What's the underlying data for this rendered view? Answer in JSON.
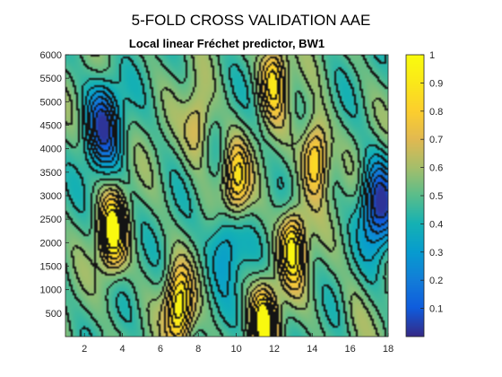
{
  "chart_data": {
    "type": "heatmap",
    "suptitle": "5-FOLD CROSS VALIDATION AAE",
    "title": "Local linear Fréchet predictor, BW1",
    "xlabel": "",
    "ylabel": "",
    "xlim": [
      1,
      18
    ],
    "ylim": [
      0,
      6000
    ],
    "x_ticks": [
      2,
      4,
      6,
      8,
      10,
      12,
      14,
      16,
      18
    ],
    "y_ticks": [
      500,
      1000,
      1500,
      2000,
      2500,
      3000,
      3500,
      4000,
      4500,
      5000,
      5500,
      6000
    ],
    "colorbar": {
      "ticks": [
        0.1,
        0.2,
        0.3,
        0.4,
        0.5,
        0.6,
        0.7,
        0.8,
        0.9,
        1
      ],
      "range": [
        0,
        1
      ]
    },
    "colormap": "parula",
    "grid": false,
    "contour_lines": true,
    "peaks": [
      {
        "x": 3.5,
        "y": 2200,
        "value": 0.95
      },
      {
        "x": 7.0,
        "y": 600,
        "value": 0.95
      },
      {
        "x": 11.5,
        "y": 300,
        "value": 0.95
      },
      {
        "x": 13.0,
        "y": 1900,
        "value": 0.92
      },
      {
        "x": 14.2,
        "y": 3800,
        "value": 0.88
      },
      {
        "x": 10.0,
        "y": 3300,
        "value": 0.85
      },
      {
        "x": 12.0,
        "y": 5500,
        "value": 0.85
      },
      {
        "x": 8.0,
        "y": 4500,
        "value": 0.7
      },
      {
        "x": 16.2,
        "y": 500,
        "value": 0.55
      }
    ],
    "lows": [
      {
        "x": 3.0,
        "y": 4500,
        "value": 0.15
      },
      {
        "x": 17.5,
        "y": 2800,
        "value": 0.1
      },
      {
        "x": 9.5,
        "y": 2000,
        "value": 0.3
      }
    ]
  }
}
